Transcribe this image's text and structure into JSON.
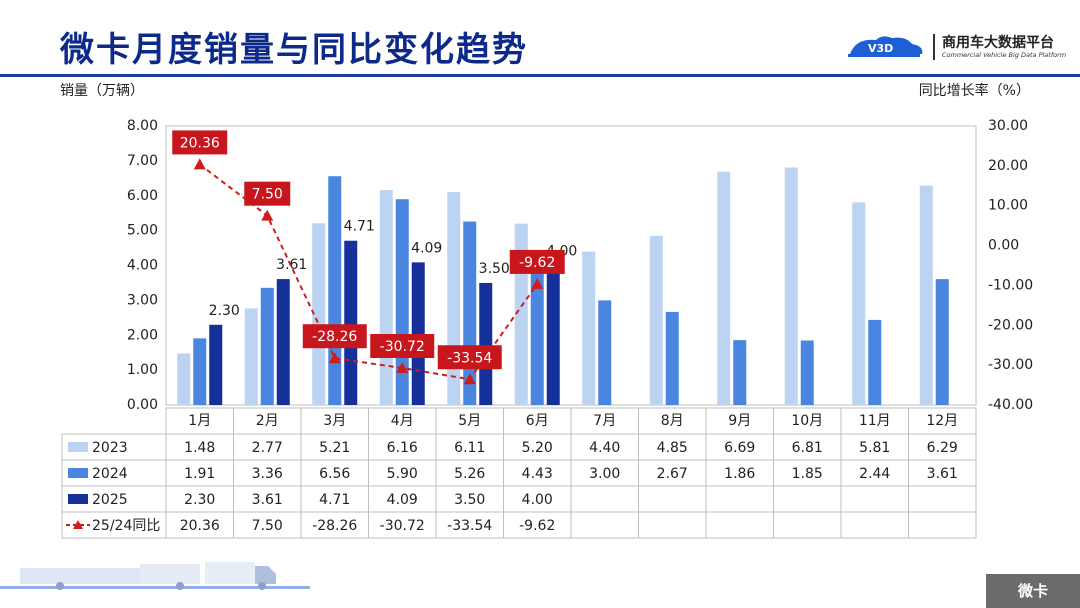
{
  "page": {
    "title": "微卡月度销量与同比变化趋势",
    "logo_name": "商用车大数据平台",
    "logo_sub": "Commercial Vehicle Big Data Platform",
    "logo_badge": "V3D",
    "footer_tag": "微卡",
    "left_axis_title": "销量（万辆）",
    "right_axis_title": "同比增长率（%）"
  },
  "colors": {
    "title": "#0d2a8a",
    "s2023": "#bcd3f2",
    "s2024": "#4a86df",
    "s2025": "#16309a",
    "yoy": "#d21c1c",
    "label_bg": "#c8161d",
    "footer": "#6b6b6b"
  },
  "chart_data": {
    "type": "bar",
    "categories": [
      "1月",
      "2月",
      "3月",
      "4月",
      "5月",
      "6月",
      "7月",
      "8月",
      "9月",
      "10月",
      "11月",
      "12月"
    ],
    "series": [
      {
        "name": "2023",
        "type": "bar",
        "values": [
          1.48,
          2.77,
          5.21,
          6.16,
          6.11,
          5.2,
          4.4,
          4.85,
          6.69,
          6.81,
          5.81,
          6.29
        ]
      },
      {
        "name": "2024",
        "type": "bar",
        "values": [
          1.91,
          3.36,
          6.56,
          5.9,
          5.26,
          4.43,
          3.0,
          2.67,
          1.86,
          1.85,
          2.44,
          3.61
        ]
      },
      {
        "name": "2025",
        "type": "bar",
        "values": [
          2.3,
          3.61,
          4.71,
          4.09,
          3.5,
          4.0,
          null,
          null,
          null,
          null,
          null,
          null
        ]
      },
      {
        "name": "25/24同比",
        "type": "line",
        "axis": "right",
        "values": [
          20.36,
          7.5,
          -28.26,
          -30.72,
          -33.54,
          -9.62,
          null,
          null,
          null,
          null,
          null,
          null
        ]
      }
    ],
    "table_rows": [
      {
        "name": "2023",
        "cells": [
          "1.48",
          "2.77",
          "5.21",
          "6.16",
          "6.11",
          "5.20",
          "4.40",
          "4.85",
          "6.69",
          "6.81",
          "5.81",
          "6.29"
        ]
      },
      {
        "name": "2024",
        "cells": [
          "1.91",
          "3.36",
          "6.56",
          "5.90",
          "5.26",
          "4.43",
          "3.00",
          "2.67",
          "1.86",
          "1.85",
          "2.44",
          "3.61"
        ]
      },
      {
        "name": "2025",
        "cells": [
          "2.30",
          "3.61",
          "4.71",
          "4.09",
          "3.50",
          "4.00",
          "",
          "",
          "",
          "",
          "",
          ""
        ]
      },
      {
        "name": "25/24同比",
        "cells": [
          "20.36",
          "7.50",
          "-28.26",
          "-30.72",
          "-33.54",
          "-9.62",
          "",
          "",
          "",
          "",
          "",
          ""
        ]
      }
    ],
    "bar_labels_2025": [
      "2.30",
      "3.61",
      "4.71",
      "4.09",
      "3.50",
      "4.00"
    ],
    "yoy_labels": [
      "20.36",
      "7.50",
      "-28.26",
      "-30.72",
      "-33.54",
      "-9.62"
    ],
    "left_ylim": [
      0,
      8
    ],
    "left_ticks": [
      "0.00",
      "1.00",
      "2.00",
      "3.00",
      "4.00",
      "5.00",
      "6.00",
      "7.00",
      "8.00"
    ],
    "right_ylim": [
      -40,
      30
    ],
    "right_ticks": [
      "-40.00",
      "-30.00",
      "-20.00",
      "-10.00",
      "0.00",
      "10.00",
      "20.00",
      "30.00"
    ],
    "grid": false,
    "legend": "data-table-below"
  }
}
